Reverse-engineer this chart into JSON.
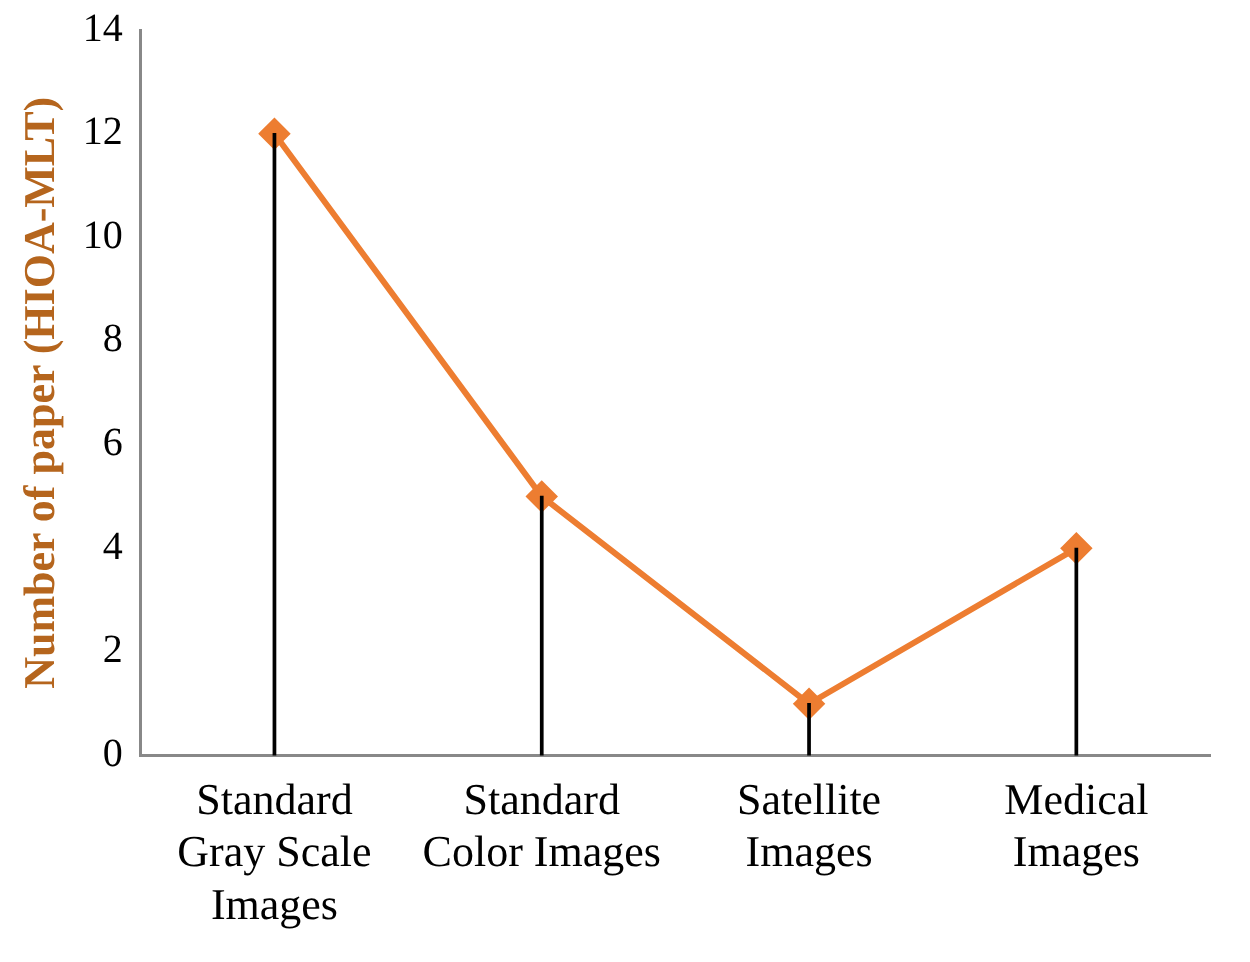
{
  "chart_data": {
    "type": "line",
    "ylabel": "Number of paper (HIOA-MLT)",
    "categories": [
      "Standard Gray Scale Images",
      "Standard Color Images",
      "Satellite Images",
      "Medical Images"
    ],
    "series": [
      {
        "type": "bar",
        "color": "#000000",
        "values": [
          12,
          5,
          1,
          4
        ]
      },
      {
        "color": "#ed7d31",
        "values": [
          12,
          5,
          1,
          4
        ]
      }
    ],
    "ylim": [
      0,
      14
    ],
    "yticks": [
      0,
      2,
      4,
      6,
      8,
      10,
      12,
      14
    ],
    "grid": false,
    "legend": false,
    "marker": "diamond",
    "line_style": "solid"
  }
}
